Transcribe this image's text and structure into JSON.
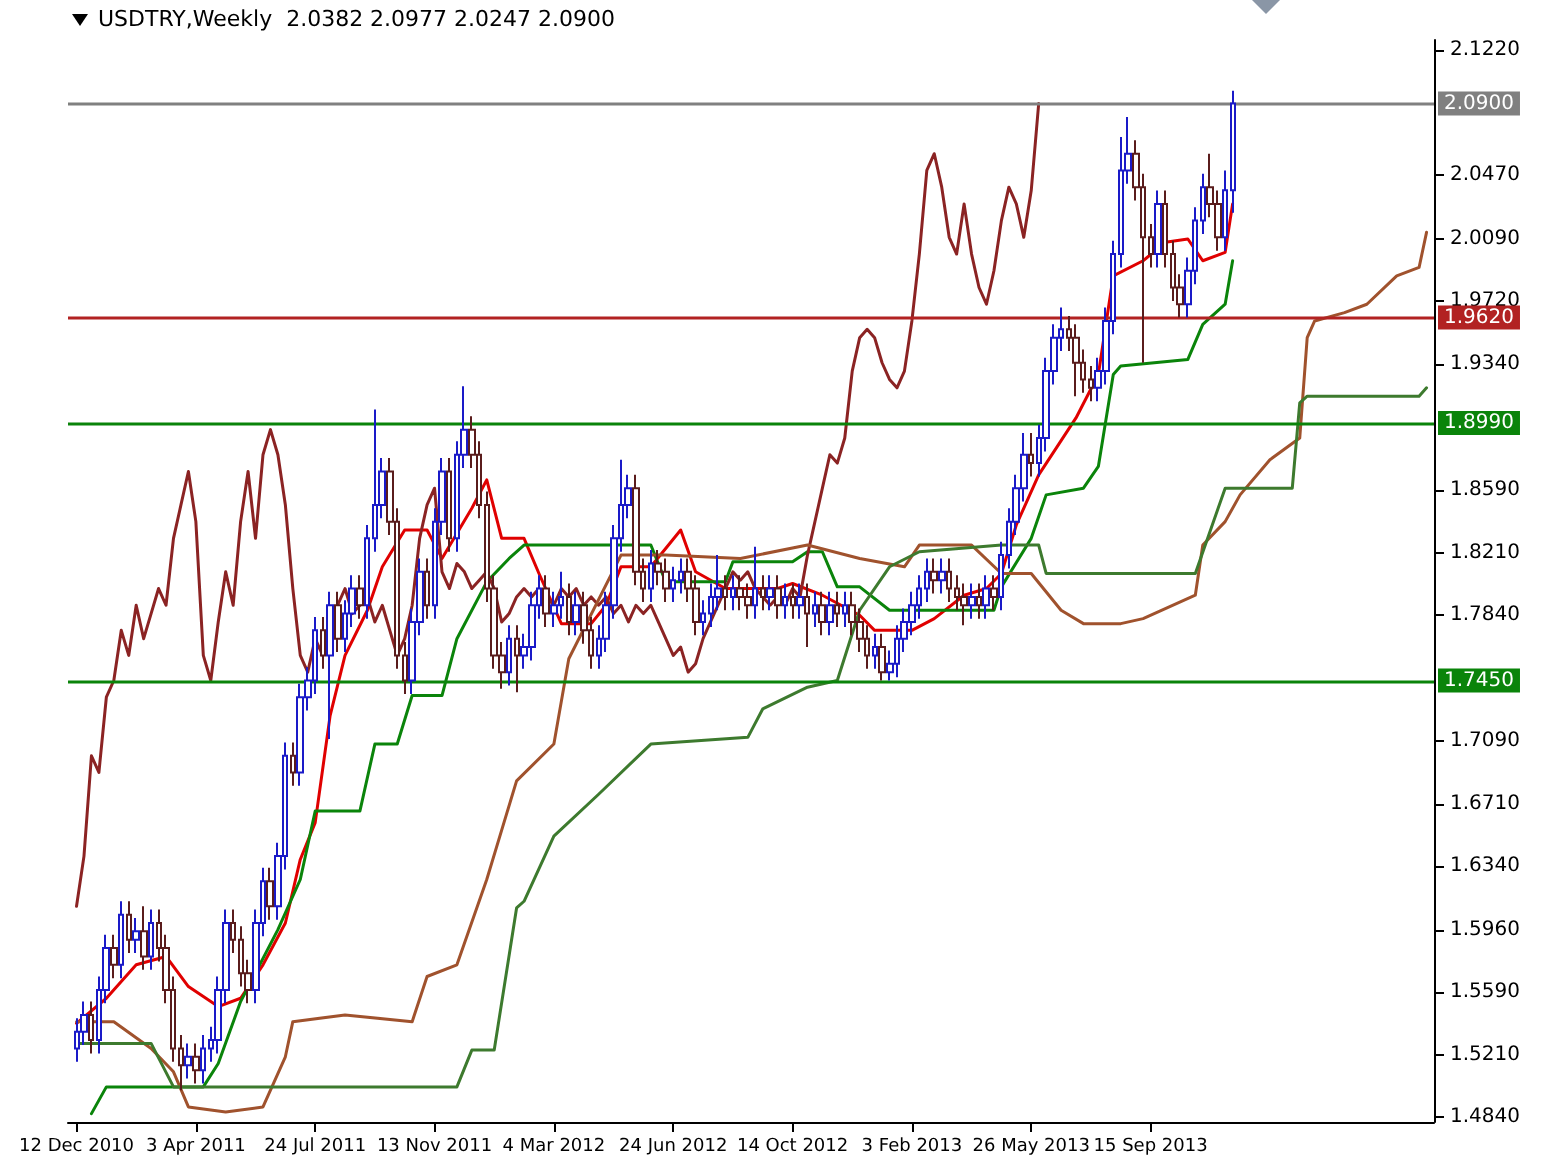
{
  "chart_data": {
    "type": "candlestick",
    "title": "USDTRY,Weekly  2.0382 2.0977 2.0247 2.0900",
    "x": [
      "2010-12-12",
      "2010-12-19",
      "2010-12-26",
      "2011-01-02",
      "2011-01-09",
      "2011-01-16",
      "2011-01-23",
      "2011-01-30",
      "2011-02-06",
      "2011-02-13",
      "2011-02-20",
      "2011-02-27",
      "2011-03-06",
      "2011-03-13",
      "2011-03-20",
      "2011-03-27",
      "2011-04-03",
      "2011-04-10",
      "2011-04-17",
      "2011-04-24",
      "2011-05-01",
      "2011-05-08",
      "2011-05-15",
      "2011-05-22",
      "2011-05-29",
      "2011-06-05",
      "2011-06-12",
      "2011-06-19",
      "2011-06-26",
      "2011-07-03",
      "2011-07-10",
      "2011-07-17",
      "2011-07-24",
      "2011-07-31",
      "2011-08-07",
      "2011-08-14",
      "2011-08-21",
      "2011-08-28",
      "2011-09-04",
      "2011-09-11",
      "2011-09-18",
      "2011-09-25",
      "2011-10-02",
      "2011-10-09",
      "2011-10-16",
      "2011-10-23",
      "2011-10-30",
      "2011-11-06",
      "2011-11-13",
      "2011-11-20",
      "2011-11-27",
      "2011-12-04",
      "2011-12-11",
      "2011-12-18",
      "2011-12-25",
      "2012-01-01",
      "2012-01-08",
      "2012-01-15",
      "2012-01-22",
      "2012-01-29",
      "2012-02-05",
      "2012-02-12",
      "2012-02-19",
      "2012-02-26",
      "2012-03-04",
      "2012-03-11",
      "2012-03-18",
      "2012-03-25",
      "2012-04-01",
      "2012-04-08",
      "2012-04-15",
      "2012-04-22",
      "2012-04-29",
      "2012-05-06",
      "2012-05-13",
      "2012-05-20",
      "2012-05-27",
      "2012-06-03",
      "2012-06-10",
      "2012-06-17",
      "2012-06-24",
      "2012-07-01",
      "2012-07-08",
      "2012-07-15",
      "2012-07-22",
      "2012-07-29",
      "2012-08-05",
      "2012-08-12",
      "2012-08-19",
      "2012-08-26",
      "2012-09-02",
      "2012-09-09",
      "2012-09-16",
      "2012-09-23",
      "2012-09-30",
      "2012-10-07",
      "2012-10-14",
      "2012-10-21",
      "2012-10-28",
      "2012-11-04",
      "2012-11-11",
      "2012-11-18",
      "2012-11-25",
      "2012-12-02",
      "2012-12-09",
      "2012-12-16",
      "2012-12-23",
      "2012-12-30",
      "2013-01-06",
      "2013-01-13",
      "2013-01-20",
      "2013-01-27",
      "2013-02-03",
      "2013-02-10",
      "2013-02-17",
      "2013-02-24",
      "2013-03-03",
      "2013-03-10",
      "2013-03-17",
      "2013-03-24",
      "2013-03-31",
      "2013-04-07",
      "2013-04-14",
      "2013-04-21",
      "2013-04-28",
      "2013-05-05",
      "2013-05-12",
      "2013-05-19",
      "2013-05-26",
      "2013-06-02",
      "2013-06-09",
      "2013-06-16",
      "2013-06-23",
      "2013-06-30",
      "2013-07-07",
      "2013-07-14",
      "2013-07-21",
      "2013-07-28",
      "2013-08-04",
      "2013-08-11",
      "2013-08-18",
      "2013-08-25",
      "2013-09-01",
      "2013-09-08",
      "2013-09-15",
      "2013-09-22",
      "2013-09-29",
      "2013-10-06",
      "2013-10-13",
      "2013-10-20",
      "2013-10-27",
      "2013-11-03",
      "2013-11-10",
      "2013-11-17",
      "2013-11-24",
      "2013-12-01"
    ],
    "xlim": [
      "2010-12-04",
      "2014-06-08"
    ],
    "xticks": [
      {
        "value": "2010-12-12",
        "label": "12 Dec 2010"
      },
      {
        "value": "2011-04-03",
        "label": "3 Apr 2011"
      },
      {
        "value": "2011-07-24",
        "label": "24 Jul 2011"
      },
      {
        "value": "2011-11-13",
        "label": "13 Nov 2011"
      },
      {
        "value": "2012-03-04",
        "label": "4 Mar 2012"
      },
      {
        "value": "2012-06-24",
        "label": "24 Jun 2012"
      },
      {
        "value": "2012-10-14",
        "label": "14 Oct 2012"
      },
      {
        "value": "2013-02-03",
        "label": "3 Feb 2013"
      },
      {
        "value": "2013-05-26",
        "label": "26 May 2013"
      },
      {
        "value": "2013-09-15",
        "label": "15 Sep 2013"
      }
    ],
    "ylim": [
      1.481,
      2.128
    ],
    "yticks": [
      {
        "value": 1.484,
        "label": "1.4840"
      },
      {
        "value": 1.521,
        "label": "1.5210"
      },
      {
        "value": 1.559,
        "label": "1.5590"
      },
      {
        "value": 1.596,
        "label": "1.5960"
      },
      {
        "value": 1.634,
        "label": "1.6340"
      },
      {
        "value": 1.671,
        "label": "1.6710"
      },
      {
        "value": 1.709,
        "label": "1.7090"
      },
      {
        "value": 1.784,
        "label": "1.7840"
      },
      {
        "value": 1.821,
        "label": "1.8210"
      },
      {
        "value": 1.859,
        "label": "1.8590"
      },
      {
        "value": 1.934,
        "label": "1.9340"
      },
      {
        "value": 1.972,
        "label": "1.9720"
      },
      {
        "value": 2.009,
        "label": "2.0090"
      },
      {
        "value": 2.047,
        "label": "2.0470"
      },
      {
        "value": 2.122,
        "label": "2.1220"
      }
    ],
    "grid": false,
    "marker": "none",
    "line_style": "solid",
    "series": [
      {
        "colors": [
          "#1a1ac8",
          "#1a1ac8",
          "#5a1c1c",
          "#1a1ac8",
          "#1a1ac8",
          "#5a1c1c",
          "#1a1ac8",
          "#5a1c1c",
          "#1a1ac8",
          "#5a1c1c",
          "#1a1ac8",
          "#5a1c1c",
          "#5a1c1c",
          "#5a1c1c",
          "#5a1c1c",
          "#1a1ac8",
          "#5a1c1c",
          "#1a1ac8",
          "#1a1ac8",
          "#1a1ac8",
          "#1a1ac8",
          "#5a1c1c",
          "#5a1c1c",
          "#5a1c1c",
          "#1a1ac8",
          "#1a1ac8",
          "#5a1c1c",
          "#1a1ac8",
          "#1a1ac8",
          "#5a1c1c",
          "#1a1ac8",
          "#1a1ac8",
          "#1a1ac8",
          "#5a1c1c",
          "#1a1ac8",
          "#5a1c1c",
          "#1a1ac8",
          "#1a1ac8",
          "#5a1c1c",
          "#1a1ac8",
          "#1a1ac8",
          "#1a1ac8",
          "#5a1c1c",
          "#5a1c1c",
          "#5a1c1c",
          "#1a1ac8",
          "#1a1ac8",
          "#5a1c1c",
          "#1a1ac8",
          "#1a1ac8",
          "#5a1c1c",
          "#1a1ac8",
          "#1a1ac8",
          "#5a1c1c",
          "#5a1c1c",
          "#5a1c1c",
          "#5a1c1c",
          "#5a1c1c",
          "#1a1ac8",
          "#5a1c1c",
          "#1a1ac8",
          "#1a1ac8",
          "#1a1ac8",
          "#5a1c1c",
          "#1a1ac8",
          "#1a1ac8",
          "#5a1c1c",
          "#1a1ac8",
          "#5a1c1c",
          "#5a1c1c",
          "#1a1ac8",
          "#1a1ac8",
          "#1a1ac8",
          "#1a1ac8",
          "#1a1ac8",
          "#5a1c1c",
          "#5a1c1c",
          "#1a1ac8",
          "#5a1c1c",
          "#5a1c1c",
          "#1a1ac8",
          "#1a1ac8",
          "#5a1c1c",
          "#5a1c1c",
          "#1a1ac8",
          "#1a1ac8",
          "#1a1ac8",
          "#5a1c1c",
          "#1a1ac8",
          "#5a1c1c",
          "#5a1c1c",
          "#1a1ac8",
          "#5a1c1c",
          "#1a1ac8",
          "#5a1c1c",
          "#1a1ac8",
          "#5a1c1c",
          "#1a1ac8",
          "#5a1c1c",
          "#1a1ac8",
          "#5a1c1c",
          "#1a1ac8",
          "#5a1c1c",
          "#1a1ac8",
          "#5a1c1c",
          "#5a1c1c",
          "#5a1c1c",
          "#1a1ac8",
          "#5a1c1c",
          "#1a1ac8",
          "#1a1ac8",
          "#1a1ac8",
          "#1a1ac8",
          "#1a1ac8",
          "#1a1ac8",
          "#5a1c1c",
          "#1a1ac8",
          "#5a1c1c",
          "#5a1c1c",
          "#5a1c1c",
          "#1a1ac8",
          "#5a1c1c",
          "#1a1ac8",
          "#5a1c1c",
          "#1a1ac8",
          "#1a1ac8",
          "#1a1ac8",
          "#1a1ac8",
          "#5a1c1c",
          "#1a1ac8",
          "#1a1ac8",
          "#1a1ac8",
          "#1a1ac8",
          "#5a1c1c",
          "#5a1c1c",
          "#5a1c1c",
          "#5a1c1c",
          "#1a1ac8",
          "#1a1ac8",
          "#1a1ac8",
          "#1a1ac8",
          "#1a1ac8",
          "#5a1c1c",
          "#5a1c1c",
          "#5a1c1c",
          "#1a1ac8",
          "#5a1c1c",
          "#5a1c1c",
          "#5a1c1c",
          "#1a1ac8",
          "#1a1ac8",
          "#1a1ac8",
          "#5a1c1c",
          "#5a1c1c",
          "#1a1ac8",
          "#1a1ac8"
        ],
        "ohlc": [
          [
            1.525,
            1.543,
            1.517,
            1.535
          ],
          [
            1.535,
            1.553,
            1.527,
            1.545
          ],
          [
            1.545,
            1.553,
            1.522,
            1.53
          ],
          [
            1.53,
            1.568,
            1.522,
            1.56
          ],
          [
            1.56,
            1.593,
            1.552,
            1.585
          ],
          [
            1.585,
            1.593,
            1.567,
            1.575
          ],
          [
            1.575,
            1.613,
            1.567,
            1.605
          ],
          [
            1.605,
            1.613,
            1.582,
            1.59
          ],
          [
            1.59,
            1.603,
            1.582,
            1.595
          ],
          [
            1.595,
            1.61,
            1.572,
            1.58
          ],
          [
            1.58,
            1.608,
            1.572,
            1.6
          ],
          [
            1.6,
            1.608,
            1.577,
            1.585
          ],
          [
            1.585,
            1.593,
            1.552,
            1.56
          ],
          [
            1.56,
            1.568,
            1.517,
            1.525
          ],
          [
            1.525,
            1.533,
            1.5,
            1.515
          ],
          [
            1.515,
            1.528,
            1.507,
            1.52
          ],
          [
            1.52,
            1.528,
            1.504,
            1.512
          ],
          [
            1.512,
            1.533,
            1.504,
            1.525
          ],
          [
            1.525,
            1.538,
            1.517,
            1.53
          ],
          [
            1.53,
            1.568,
            1.522,
            1.56
          ],
          [
            1.56,
            1.608,
            1.552,
            1.6
          ],
          [
            1.6,
            1.608,
            1.582,
            1.59
          ],
          [
            1.59,
            1.598,
            1.562,
            1.57
          ],
          [
            1.57,
            1.578,
            1.552,
            1.56
          ],
          [
            1.56,
            1.608,
            1.552,
            1.6
          ],
          [
            1.6,
            1.633,
            1.592,
            1.625
          ],
          [
            1.625,
            1.633,
            1.602,
            1.61
          ],
          [
            1.61,
            1.648,
            1.602,
            1.64
          ],
          [
            1.64,
            1.708,
            1.632,
            1.7
          ],
          [
            1.7,
            1.708,
            1.682,
            1.69
          ],
          [
            1.69,
            1.743,
            1.682,
            1.735
          ],
          [
            1.735,
            1.753,
            1.727,
            1.745
          ],
          [
            1.745,
            1.783,
            1.737,
            1.775
          ],
          [
            1.775,
            1.783,
            1.752,
            1.76
          ],
          [
            1.76,
            1.798,
            1.71,
            1.79
          ],
          [
            1.79,
            1.798,
            1.762,
            1.77
          ],
          [
            1.77,
            1.793,
            1.762,
            1.785
          ],
          [
            1.785,
            1.808,
            1.777,
            1.8
          ],
          [
            1.8,
            1.808,
            1.782,
            1.79
          ],
          [
            1.79,
            1.838,
            1.782,
            1.83
          ],
          [
            1.83,
            1.907,
            1.822,
            1.85
          ],
          [
            1.85,
            1.878,
            1.842,
            1.87
          ],
          [
            1.87,
            1.878,
            1.832,
            1.84
          ],
          [
            1.84,
            1.848,
            1.752,
            1.76
          ],
          [
            1.76,
            1.768,
            1.737,
            1.745
          ],
          [
            1.745,
            1.788,
            1.737,
            1.78
          ],
          [
            1.78,
            1.818,
            1.772,
            1.81
          ],
          [
            1.81,
            1.818,
            1.782,
            1.79
          ],
          [
            1.79,
            1.848,
            1.782,
            1.84
          ],
          [
            1.84,
            1.878,
            1.832,
            1.87
          ],
          [
            1.87,
            1.878,
            1.822,
            1.83
          ],
          [
            1.83,
            1.888,
            1.822,
            1.88
          ],
          [
            1.88,
            1.921,
            1.872,
            1.895
          ],
          [
            1.895,
            1.903,
            1.872,
            1.88
          ],
          [
            1.88,
            1.888,
            1.842,
            1.85
          ],
          [
            1.85,
            1.858,
            1.792,
            1.8
          ],
          [
            1.8,
            1.808,
            1.752,
            1.76
          ],
          [
            1.76,
            1.768,
            1.74,
            1.75
          ],
          [
            1.75,
            1.778,
            1.742,
            1.77
          ],
          [
            1.77,
            1.778,
            1.738,
            1.76
          ],
          [
            1.76,
            1.773,
            1.752,
            1.765
          ],
          [
            1.765,
            1.798,
            1.757,
            1.79
          ],
          [
            1.79,
            1.808,
            1.782,
            1.8
          ],
          [
            1.8,
            1.808,
            1.777,
            1.785
          ],
          [
            1.785,
            1.798,
            1.777,
            1.79
          ],
          [
            1.79,
            1.81,
            1.782,
            1.795
          ],
          [
            1.795,
            1.803,
            1.772,
            1.78
          ],
          [
            1.78,
            1.798,
            1.772,
            1.79
          ],
          [
            1.79,
            1.798,
            1.767,
            1.775
          ],
          [
            1.775,
            1.783,
            1.752,
            1.76
          ],
          [
            1.76,
            1.778,
            1.752,
            1.77
          ],
          [
            1.77,
            1.798,
            1.762,
            1.79
          ],
          [
            1.79,
            1.838,
            1.782,
            1.83
          ],
          [
            1.83,
            1.877,
            1.822,
            1.85
          ],
          [
            1.85,
            1.868,
            1.842,
            1.86
          ],
          [
            1.86,
            1.868,
            1.802,
            1.81
          ],
          [
            1.81,
            1.818,
            1.792,
            1.8
          ],
          [
            1.8,
            1.823,
            1.792,
            1.815
          ],
          [
            1.815,
            1.823,
            1.802,
            1.81
          ],
          [
            1.81,
            1.818,
            1.792,
            1.8
          ],
          [
            1.8,
            1.813,
            1.792,
            1.805
          ],
          [
            1.805,
            1.818,
            1.797,
            1.81
          ],
          [
            1.81,
            1.818,
            1.792,
            1.8
          ],
          [
            1.8,
            1.808,
            1.772,
            1.78
          ],
          [
            1.78,
            1.793,
            1.772,
            1.785
          ],
          [
            1.785,
            1.803,
            1.777,
            1.795
          ],
          [
            1.795,
            1.82,
            1.787,
            1.8
          ],
          [
            1.8,
            1.808,
            1.787,
            1.795
          ],
          [
            1.795,
            1.808,
            1.787,
            1.8
          ],
          [
            1.8,
            1.808,
            1.787,
            1.795
          ],
          [
            1.795,
            1.803,
            1.782,
            1.79
          ],
          [
            1.79,
            1.825,
            1.782,
            1.8
          ],
          [
            1.8,
            1.808,
            1.787,
            1.795
          ],
          [
            1.795,
            1.808,
            1.787,
            1.8
          ],
          [
            1.8,
            1.808,
            1.782,
            1.79
          ],
          [
            1.79,
            1.803,
            1.782,
            1.795
          ],
          [
            1.795,
            1.803,
            1.782,
            1.79
          ],
          [
            1.79,
            1.803,
            1.782,
            1.795
          ],
          [
            1.795,
            1.803,
            1.765,
            1.785
          ],
          [
            1.785,
            1.798,
            1.777,
            1.79
          ],
          [
            1.79,
            1.798,
            1.772,
            1.78
          ],
          [
            1.78,
            1.798,
            1.772,
            1.79
          ],
          [
            1.79,
            1.798,
            1.777,
            1.785
          ],
          [
            1.785,
            1.798,
            1.777,
            1.79
          ],
          [
            1.79,
            1.798,
            1.772,
            1.78
          ],
          [
            1.78,
            1.788,
            1.762,
            1.77
          ],
          [
            1.77,
            1.778,
            1.752,
            1.76
          ],
          [
            1.76,
            1.773,
            1.752,
            1.765
          ],
          [
            1.765,
            1.773,
            1.745,
            1.75
          ],
          [
            1.75,
            1.763,
            1.745,
            1.755
          ],
          [
            1.755,
            1.778,
            1.747,
            1.77
          ],
          [
            1.77,
            1.788,
            1.762,
            1.78
          ],
          [
            1.78,
            1.798,
            1.772,
            1.79
          ],
          [
            1.79,
            1.808,
            1.782,
            1.8
          ],
          [
            1.8,
            1.818,
            1.792,
            1.81
          ],
          [
            1.81,
            1.818,
            1.797,
            1.805
          ],
          [
            1.805,
            1.818,
            1.797,
            1.81
          ],
          [
            1.81,
            1.818,
            1.792,
            1.8
          ],
          [
            1.8,
            1.808,
            1.787,
            1.795
          ],
          [
            1.795,
            1.803,
            1.778,
            1.79
          ],
          [
            1.79,
            1.803,
            1.782,
            1.795
          ],
          [
            1.795,
            1.803,
            1.782,
            1.79
          ],
          [
            1.79,
            1.808,
            1.782,
            1.8
          ],
          [
            1.8,
            1.808,
            1.787,
            1.795
          ],
          [
            1.795,
            1.828,
            1.787,
            1.82
          ],
          [
            1.82,
            1.848,
            1.812,
            1.84
          ],
          [
            1.84,
            1.868,
            1.832,
            1.86
          ],
          [
            1.86,
            1.893,
            1.852,
            1.88
          ],
          [
            1.88,
            1.893,
            1.867,
            1.875
          ],
          [
            1.875,
            1.898,
            1.867,
            1.89
          ],
          [
            1.89,
            1.938,
            1.882,
            1.93
          ],
          [
            1.93,
            1.958,
            1.922,
            1.95
          ],
          [
            1.95,
            1.968,
            1.942,
            1.955
          ],
          [
            1.955,
            1.963,
            1.942,
            1.95
          ],
          [
            1.95,
            1.958,
            1.915,
            1.935
          ],
          [
            1.935,
            1.943,
            1.917,
            1.925
          ],
          [
            1.925,
            1.933,
            1.912,
            1.92
          ],
          [
            1.92,
            1.938,
            1.912,
            1.93
          ],
          [
            1.93,
            1.968,
            1.922,
            1.96
          ],
          [
            1.96,
            2.008,
            1.952,
            2.0
          ],
          [
            2.0,
            2.07,
            1.992,
            2.05
          ],
          [
            2.05,
            2.082,
            2.042,
            2.06
          ],
          [
            2.06,
            2.068,
            2.032,
            2.04
          ],
          [
            2.04,
            2.048,
            1.935,
            2.01
          ],
          [
            2.01,
            2.018,
            1.992,
            2.0
          ],
          [
            2.0,
            2.038,
            1.992,
            2.03
          ],
          [
            2.03,
            2.038,
            1.992,
            2.0
          ],
          [
            2.0,
            2.008,
            1.972,
            1.98
          ],
          [
            1.98,
            1.988,
            1.962,
            1.97
          ],
          [
            1.97,
            1.998,
            1.962,
            1.99
          ],
          [
            1.99,
            2.028,
            1.982,
            2.02
          ],
          [
            2.02,
            2.048,
            2.012,
            2.04
          ],
          [
            2.04,
            2.06,
            2.022,
            2.03
          ],
          [
            2.03,
            2.038,
            2.002,
            2.01
          ],
          [
            2.01,
            2.05,
            2.002,
            2.0382
          ],
          [
            2.0382,
            2.0977,
            2.0247,
            2.09
          ]
        ]
      },
      {
        "type": "line",
        "color": "#e00000",
        "x": [
          "2010-12-12",
          "2011-01-09",
          "2011-02-06",
          "2011-03-06",
          "2011-03-27",
          "2011-04-24",
          "2011-05-15",
          "2011-06-05",
          "2011-06-26",
          "2011-07-10",
          "2011-07-24",
          "2011-08-07",
          "2011-08-21",
          "2011-09-11",
          "2011-09-25",
          "2011-10-16",
          "2011-11-06",
          "2011-11-20",
          "2011-12-18",
          "2012-01-01",
          "2012-01-15",
          "2012-02-05",
          "2012-02-19",
          "2012-03-11",
          "2012-04-08",
          "2012-04-22",
          "2012-05-06",
          "2012-06-03",
          "2012-07-01",
          "2012-07-15",
          "2012-08-12",
          "2012-09-30",
          "2012-10-14",
          "2012-11-11",
          "2012-12-16",
          "2012-12-30",
          "2013-02-03",
          "2013-02-24",
          "2013-03-24",
          "2013-04-14",
          "2013-04-28",
          "2013-05-12",
          "2013-06-02",
          "2013-07-07",
          "2013-07-28",
          "2013-08-11",
          "2013-09-08",
          "2013-09-29",
          "2013-10-20",
          "2013-11-03",
          "2013-11-24",
          "2013-12-01"
        ],
        "values": [
          1.54,
          1.555,
          1.575,
          1.58,
          1.562,
          1.55,
          1.555,
          1.575,
          1.6,
          1.638,
          1.66,
          1.724,
          1.76,
          1.787,
          1.813,
          1.835,
          1.835,
          1.818,
          1.848,
          1.865,
          1.83,
          1.83,
          1.809,
          1.779,
          1.779,
          1.79,
          1.813,
          1.813,
          1.835,
          1.81,
          1.8,
          1.8,
          1.803,
          1.796,
          1.784,
          1.775,
          1.775,
          1.782,
          1.796,
          1.8,
          1.809,
          1.838,
          1.868,
          1.902,
          1.928,
          1.987,
          1.996,
          2.007,
          2.009,
          1.996,
          2.001,
          2.03
        ]
      },
      {
        "type": "line",
        "color": "#0a840a",
        "x": [
          "2010-12-26",
          "2011-01-09",
          "2011-04-10",
          "2011-04-24",
          "2011-05-15",
          "2011-06-19",
          "2011-07-10",
          "2011-07-24",
          "2011-09-04",
          "2011-09-18",
          "2011-10-09",
          "2011-10-23",
          "2011-11-20",
          "2011-12-04",
          "2012-01-01",
          "2012-01-22",
          "2012-02-05",
          "2012-06-03",
          "2012-06-17",
          "2012-08-12",
          "2012-08-19",
          "2012-10-14",
          "2012-10-28",
          "2012-11-11",
          "2012-11-25",
          "2012-12-16",
          "2013-01-13",
          "2013-04-21",
          "2013-04-28",
          "2013-05-26",
          "2013-06-09",
          "2013-07-14",
          "2013-07-28",
          "2013-08-11",
          "2013-08-18",
          "2013-10-20",
          "2013-11-03",
          "2013-11-24",
          "2013-12-01"
        ],
        "values": [
          1.486,
          1.502,
          1.502,
          1.516,
          1.553,
          1.596,
          1.626,
          1.667,
          1.667,
          1.707,
          1.707,
          1.736,
          1.736,
          1.77,
          1.804,
          1.818,
          1.826,
          1.826,
          1.804,
          1.804,
          1.816,
          1.816,
          1.822,
          1.822,
          1.801,
          1.801,
          1.787,
          1.787,
          1.801,
          1.83,
          1.856,
          1.86,
          1.873,
          1.928,
          1.933,
          1.937,
          1.958,
          1.97,
          1.996
        ]
      },
      {
        "type": "line",
        "color": "#8b2323",
        "values": [
          1.61,
          1.64,
          1.7,
          1.69,
          1.735,
          1.745,
          1.775,
          1.76,
          1.79,
          1.77,
          1.785,
          1.8,
          1.79,
          1.83,
          1.85,
          1.87,
          1.84,
          1.76,
          1.745,
          1.78,
          1.81,
          1.79,
          1.84,
          1.87,
          1.83,
          1.88,
          1.895,
          1.88,
          1.85,
          1.8,
          1.76,
          1.75,
          1.77,
          1.76,
          1.765,
          1.79,
          1.8,
          1.785,
          1.79,
          1.795,
          1.78,
          1.79,
          1.775,
          1.76,
          1.77,
          1.79,
          1.83,
          1.85,
          1.86,
          1.81,
          1.8,
          1.815,
          1.81,
          1.8,
          1.805,
          1.81,
          1.8,
          1.78,
          1.785,
          1.795,
          1.8,
          1.795,
          1.8,
          1.795,
          1.79,
          1.8,
          1.795,
          1.8,
          1.79,
          1.795,
          1.79,
          1.795,
          1.785,
          1.79,
          1.78,
          1.79,
          1.785,
          1.79,
          1.78,
          1.77,
          1.76,
          1.765,
          1.75,
          1.755,
          1.77,
          1.78,
          1.79,
          1.8,
          1.81,
          1.805,
          1.81,
          1.8,
          1.795,
          1.79,
          1.795,
          1.79,
          1.8,
          1.795,
          1.82,
          1.84,
          1.86,
          1.88,
          1.875,
          1.89,
          1.93,
          1.95,
          1.955,
          1.95,
          1.935,
          1.925,
          1.92,
          1.93,
          1.96,
          2.0,
          2.05,
          2.06,
          2.04,
          2.01,
          2.0,
          2.03,
          2.0,
          1.98,
          1.97,
          1.99,
          2.02,
          2.04,
          2.03,
          2.01,
          2.038,
          2.09,
          null,
          null,
          null,
          null,
          null,
          null,
          null,
          null,
          null,
          null,
          null,
          null,
          null,
          null,
          null,
          null,
          null,
          null,
          null,
          null,
          null,
          null,
          null,
          null,
          null,
          null
        ]
      },
      {
        "type": "line",
        "color": "#a0522d",
        "x": [
          "2010-12-12",
          "2011-01-16",
          "2011-02-20",
          "2011-03-13",
          "2011-03-27",
          "2011-05-01",
          "2011-06-05",
          "2011-06-26",
          "2011-07-03",
          "2011-08-21",
          "2011-10-23",
          "2011-11-06",
          "2011-12-04",
          "2012-01-01",
          "2012-01-29",
          "2012-03-04",
          "2012-03-18",
          "2012-05-06",
          "2012-06-17",
          "2012-08-26",
          "2012-10-28",
          "2012-12-16",
          "2013-01-27",
          "2013-02-10",
          "2013-03-31",
          "2013-04-28",
          "2013-05-26",
          "2013-06-23",
          "2013-07-14",
          "2013-08-18",
          "2013-09-08",
          "2013-10-27",
          "2013-11-03",
          "2013-11-24",
          "2013-12-08",
          "2014-01-05",
          "2014-02-02",
          "2014-02-09",
          "2014-02-16",
          "2014-03-16",
          "2014-04-06",
          "2014-05-04",
          "2014-05-25",
          "2014-06-01"
        ],
        "values": [
          1.541,
          1.541,
          1.525,
          1.511,
          1.49,
          1.487,
          1.49,
          1.52,
          1.541,
          1.545,
          1.541,
          1.568,
          1.575,
          1.626,
          1.685,
          1.707,
          1.758,
          1.82,
          1.82,
          1.818,
          1.826,
          1.818,
          1.813,
          1.826,
          1.826,
          1.809,
          1.809,
          1.787,
          1.779,
          1.779,
          1.782,
          1.796,
          1.826,
          1.84,
          1.856,
          1.877,
          1.89,
          1.95,
          1.96,
          1.965,
          1.97,
          1.987,
          1.992,
          2.013
        ]
      },
      {
        "type": "line",
        "color": "#3d7a2e",
        "x": [
          "2010-12-12",
          "2011-02-20",
          "2011-03-13",
          "2011-12-04",
          "2011-12-18",
          "2012-01-08",
          "2012-01-29",
          "2012-02-05",
          "2012-03-04",
          "2012-04-15",
          "2012-06-03",
          "2012-09-02",
          "2012-09-16",
          "2012-10-28",
          "2012-11-25",
          "2012-12-16",
          "2013-01-13",
          "2013-02-10",
          "2013-04-28",
          "2013-06-02",
          "2013-06-09",
          "2013-10-27",
          "2013-11-24",
          "2014-01-26",
          "2014-02-02",
          "2014-02-09",
          "2014-05-25",
          "2014-06-01"
        ],
        "values": [
          1.528,
          1.528,
          1.502,
          1.502,
          1.524,
          1.524,
          1.609,
          1.613,
          1.652,
          1.677,
          1.707,
          1.711,
          1.728,
          1.741,
          1.745,
          1.787,
          1.813,
          1.822,
          1.826,
          1.826,
          1.809,
          1.809,
          1.86,
          1.86,
          1.911,
          1.915,
          1.915,
          1.92
        ]
      }
    ],
    "ref_lines": [
      {
        "axis": "y",
        "value": 2.09,
        "label": "2.0900",
        "color": "#808080"
      },
      {
        "axis": "y",
        "value": 1.962,
        "label": "1.9620",
        "color": "#b22222"
      },
      {
        "axis": "y",
        "value": 1.899,
        "label": "1.8990",
        "color": "#0a840a"
      },
      {
        "axis": "y",
        "value": 1.745,
        "label": "1.7450",
        "color": "#0a840a"
      }
    ]
  }
}
